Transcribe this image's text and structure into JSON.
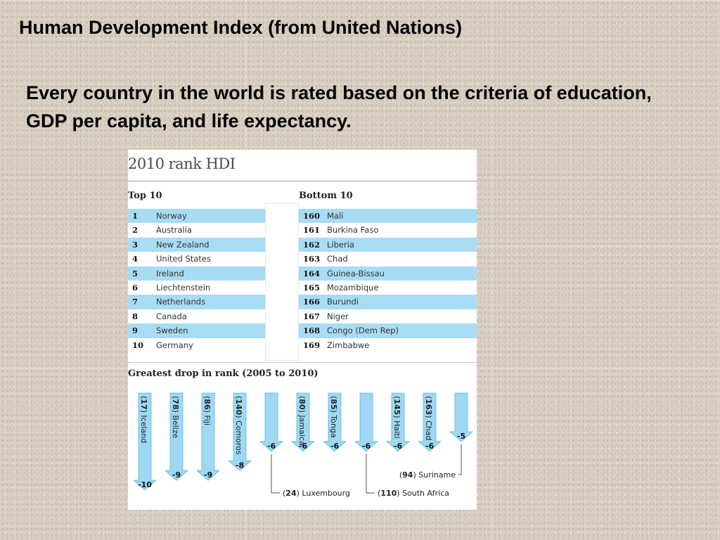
{
  "slide": {
    "title": "Human Development Index (from United Nations)",
    "subtitle": "Every country in the world is rated based on the criteria of education, GDP per capita, and life expectancy."
  },
  "panel": {
    "title": "2010 rank HDI",
    "top_heading": "Top 10",
    "bottom_heading": "Bottom 10",
    "drop_heading": "Greatest drop in rank (2005 to 2010)"
  },
  "colors": {
    "row_shade": "#a8dcf4",
    "arrow_fill": "#9ed8f2",
    "arrow_edge": "#5fb6e0"
  },
  "top10": [
    {
      "rank": "1",
      "country": "Norway"
    },
    {
      "rank": "2",
      "country": "Australia"
    },
    {
      "rank": "3",
      "country": "New Zealand"
    },
    {
      "rank": "4",
      "country": "United States"
    },
    {
      "rank": "5",
      "country": "Ireland"
    },
    {
      "rank": "6",
      "country": "Liechtenstein"
    },
    {
      "rank": "7",
      "country": "Netherlands"
    },
    {
      "rank": "8",
      "country": "Canada"
    },
    {
      "rank": "9",
      "country": "Sweden"
    },
    {
      "rank": "10",
      "country": "Germany"
    }
  ],
  "bottom10": [
    {
      "rank": "160",
      "country": "Mali"
    },
    {
      "rank": "161",
      "country": "Burkina Faso"
    },
    {
      "rank": "162",
      "country": "Liberia"
    },
    {
      "rank": "163",
      "country": "Chad"
    },
    {
      "rank": "164",
      "country": "Guinea-Bissau"
    },
    {
      "rank": "165",
      "country": "Mozambique"
    },
    {
      "rank": "166",
      "country": "Burundi"
    },
    {
      "rank": "167",
      "country": "Niger"
    },
    {
      "rank": "168",
      "country": "Congo (Dem Rep)"
    },
    {
      "rank": "169",
      "country": "Zimbabwe"
    }
  ],
  "chart_data": {
    "type": "bar",
    "title": "Greatest drop in rank (2005 to 2010)",
    "categories": [
      "Iceland",
      "Belize",
      "Fiji",
      "Comoros",
      "Luxembourg",
      "Jamaica",
      "Tonga",
      "South Africa",
      "Haiti",
      "Chad",
      "Suriname"
    ],
    "rank_2010": [
      "17",
      "78",
      "86",
      "140",
      "24",
      "80",
      "85",
      "110",
      "145",
      "163",
      "94"
    ],
    "drop_labels": [
      "-10",
      "-9",
      "-9",
      "-8",
      "-6",
      "-6",
      "-6",
      "-6",
      "-6",
      "-6",
      "-5"
    ],
    "values": [
      -10,
      -9,
      -9,
      -8,
      -6,
      -6,
      -6,
      -6,
      -6,
      -6,
      -5
    ],
    "callout": [
      false,
      false,
      false,
      false,
      true,
      false,
      false,
      true,
      false,
      false,
      true
    ]
  }
}
